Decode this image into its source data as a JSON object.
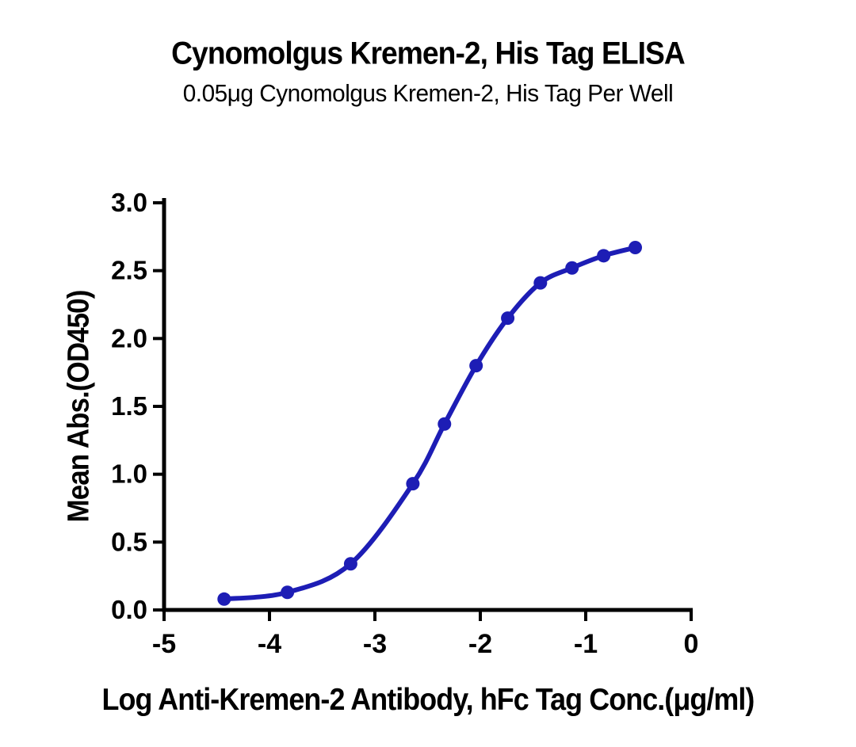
{
  "page": {
    "background_color": "#ffffff",
    "text_color": "#000000"
  },
  "header": {
    "title": "Cynomolgus Kremen-2, His Tag ELISA",
    "subtitle": "0.05μg Cynomolgus Kremen-2, His Tag Per Well"
  },
  "chart_data": {
    "type": "line",
    "title": "Cynomolgus Kremen-2, His Tag ELISA",
    "subtitle": "0.05μg Cynomolgus Kremen-2, His Tag Per Well",
    "xlabel": "Log Anti-Kremen-2 Antibody, hFc Tag Conc.(μg/ml)",
    "ylabel": "Mean Abs.(OD450)",
    "xlim": [
      -5,
      0
    ],
    "ylim": [
      0,
      3
    ],
    "x_ticks": [
      -5,
      -4,
      -3,
      -2,
      -1,
      0
    ],
    "y_ticks": [
      0.0,
      0.5,
      1.0,
      1.5,
      2.0,
      2.5,
      3.0
    ],
    "grid": false,
    "legend_position": "none",
    "axis_color": "#000000",
    "series": [
      {
        "name": "Anti-Kremen-2 Antibody, hFc Tag",
        "color": "#1D1DB5",
        "marker": "circle",
        "x": [
          -4.43,
          -3.83,
          -3.23,
          -2.64,
          -2.34,
          -2.04,
          -1.74,
          -1.43,
          -1.13,
          -0.83,
          -0.53
        ],
        "y": [
          0.08,
          0.13,
          0.34,
          0.93,
          1.37,
          1.8,
          2.15,
          2.41,
          2.52,
          2.61,
          2.67
        ]
      }
    ]
  }
}
